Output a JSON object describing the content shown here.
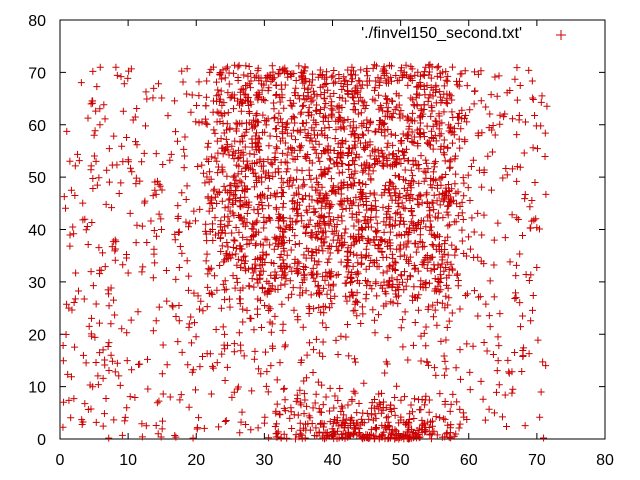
{
  "chart_data": {
    "type": "scatter",
    "title": "",
    "xlabel": "",
    "ylabel": "",
    "xlim": [
      0,
      80
    ],
    "ylim": [
      0,
      80
    ],
    "x_ticks": [
      "0",
      "10",
      "20",
      "30",
      "40",
      "50",
      "60",
      "70",
      "80"
    ],
    "y_ticks": [
      "0",
      "10",
      "20",
      "30",
      "40",
      "50",
      "60",
      "70",
      "80"
    ],
    "grid": false,
    "legend": {
      "position": "top-right"
    },
    "series": [
      {
        "name": "'./finvel150_second.txt'",
        "marker": "plus",
        "color": "#cc0000",
        "note_x_range": [
          0,
          71
        ],
        "note_y_range": [
          0,
          71
        ]
      }
    ]
  }
}
